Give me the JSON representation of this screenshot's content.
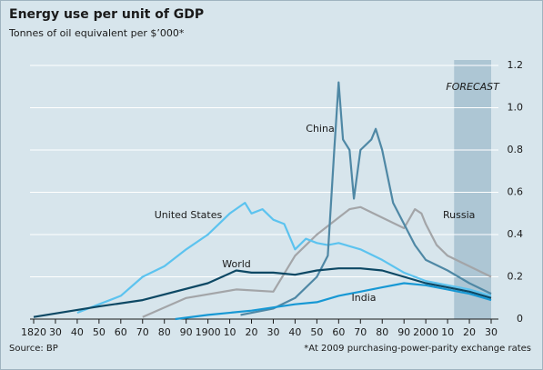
{
  "chart_data": {
    "type": "line",
    "title": "Energy use per unit of GDP",
    "subtitle": "Tonnes of oil equivalent per $’000*",
    "source": "Source: BP",
    "footnote": "*At 2009 purchasing-power-parity exchange rates",
    "forecast": {
      "label": "FORECAST",
      "start": 2013,
      "end": 2030
    },
    "xlim": [
      1820,
      2030
    ],
    "ylim": [
      0,
      1.2
    ],
    "grid": true,
    "xticks": [
      1820,
      {
        "value": 1830,
        "label": "30"
      },
      {
        "value": 1840,
        "label": "40"
      },
      {
        "value": 1850,
        "label": "50"
      },
      {
        "value": 1860,
        "label": "60"
      },
      {
        "value": 1870,
        "label": "70"
      },
      {
        "value": 1880,
        "label": "80"
      },
      {
        "value": 1890,
        "label": "90"
      },
      1900,
      {
        "value": 1910,
        "label": "10"
      },
      {
        "value": 1920,
        "label": "20"
      },
      {
        "value": 1930,
        "label": "30"
      },
      {
        "value": 1940,
        "label": "40"
      },
      {
        "value": 1950,
        "label": "50"
      },
      {
        "value": 1960,
        "label": "60"
      },
      {
        "value": 1970,
        "label": "70"
      },
      {
        "value": 1980,
        "label": "80"
      },
      {
        "value": 1990,
        "label": "90"
      },
      2000,
      {
        "value": 2010,
        "label": "10"
      },
      {
        "value": 2020,
        "label": "20"
      },
      {
        "value": 2030,
        "label": "30"
      }
    ],
    "yticks": [
      0,
      0.2,
      0.4,
      0.6,
      0.8,
      {
        "value": 1,
        "label": "1.0"
      },
      1.2
    ],
    "series": [
      {
        "name": "Russia",
        "color": "#a3a5a8",
        "x": [
          1870,
          1890,
          1913,
          1930,
          1940,
          1950,
          1960,
          1965,
          1970,
          1980,
          1990,
          1995,
          1998,
          2000,
          2005,
          2010,
          2020,
          2030
        ],
        "values": [
          0.01,
          0.1,
          0.14,
          0.13,
          0.3,
          0.4,
          0.48,
          0.52,
          0.53,
          0.48,
          0.43,
          0.52,
          0.5,
          0.45,
          0.35,
          0.3,
          0.25,
          0.2
        ]
      },
      {
        "name": "United States",
        "color": "#5cc3ef",
        "x": [
          1840,
          1850,
          1860,
          1870,
          1880,
          1890,
          1900,
          1905,
          1910,
          1917,
          1920,
          1925,
          1930,
          1935,
          1940,
          1945,
          1950,
          1955,
          1960,
          1970,
          1980,
          1990,
          2000,
          2010,
          2020,
          2030
        ],
        "values": [
          0.03,
          0.07,
          0.11,
          0.2,
          0.25,
          0.33,
          0.4,
          0.45,
          0.5,
          0.55,
          0.5,
          0.52,
          0.47,
          0.45,
          0.33,
          0.38,
          0.36,
          0.35,
          0.36,
          0.33,
          0.28,
          0.22,
          0.18,
          0.16,
          0.14,
          0.11
        ]
      },
      {
        "name": "China",
        "color": "#4f88a5",
        "x": [
          1915,
          1930,
          1940,
          1950,
          1955,
          1958,
          1960,
          1962,
          1965,
          1967,
          1970,
          1975,
          1977,
          1980,
          1985,
          1990,
          1995,
          2000,
          2010,
          2020,
          2030
        ],
        "values": [
          0.02,
          0.05,
          0.1,
          0.2,
          0.3,
          0.8,
          1.12,
          0.85,
          0.8,
          0.57,
          0.8,
          0.85,
          0.9,
          0.8,
          0.55,
          0.45,
          0.35,
          0.28,
          0.23,
          0.17,
          0.12
        ]
      },
      {
        "name": "World",
        "color": "#0d4864",
        "x": [
          1820,
          1850,
          1870,
          1900,
          1913,
          1920,
          1930,
          1940,
          1950,
          1960,
          1970,
          1980,
          1990,
          2000,
          2010,
          2020,
          2030
        ],
        "values": [
          0.01,
          0.06,
          0.09,
          0.17,
          0.23,
          0.22,
          0.22,
          0.21,
          0.23,
          0.24,
          0.24,
          0.23,
          0.2,
          0.17,
          0.15,
          0.13,
          0.1
        ]
      },
      {
        "name": "India",
        "color": "#1798d4",
        "x": [
          1885,
          1900,
          1920,
          1940,
          1950,
          1960,
          1970,
          1980,
          1990,
          2000,
          2010,
          2020,
          2030
        ],
        "values": [
          0,
          0.02,
          0.04,
          0.07,
          0.08,
          0.11,
          0.13,
          0.15,
          0.17,
          0.16,
          0.14,
          0.12,
          0.09
        ]
      }
    ]
  }
}
